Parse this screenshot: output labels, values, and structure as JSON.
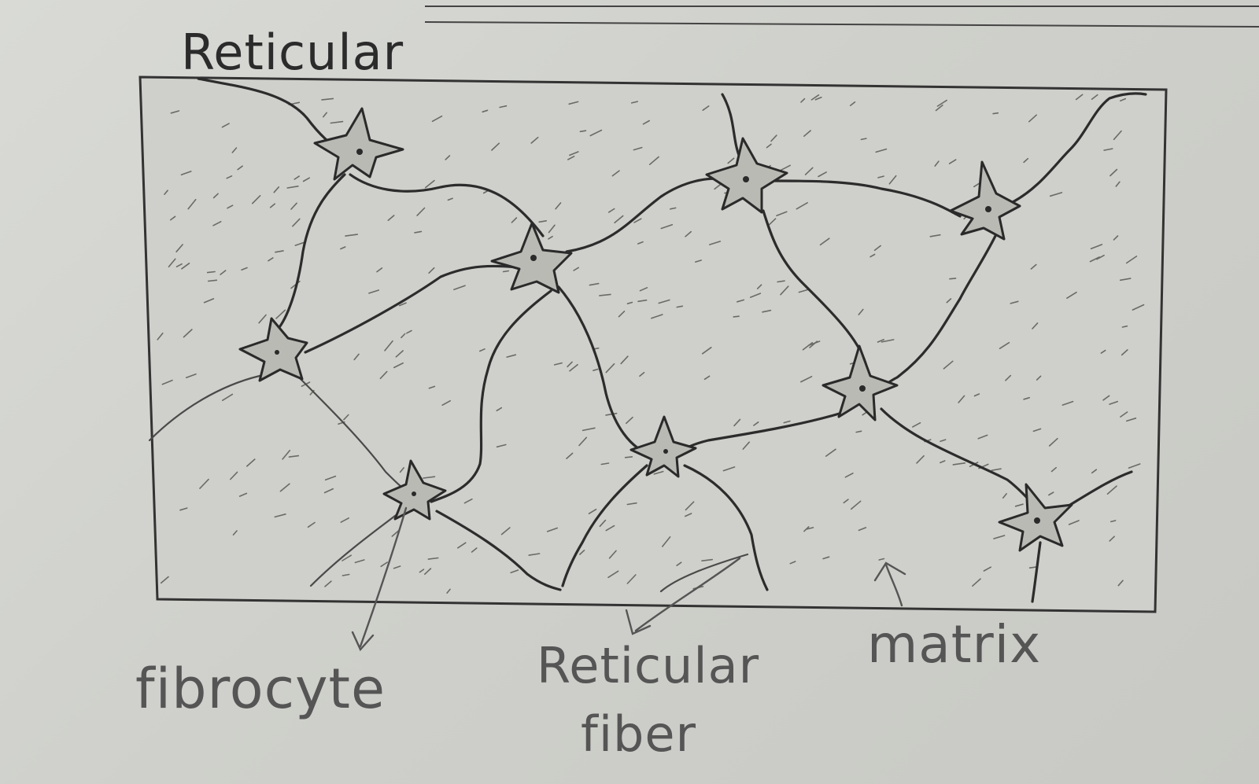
{
  "diagram": {
    "title": "Reticular",
    "labels": {
      "fibrocyte": "fibrocyte",
      "reticular_fiber_line1": "Reticular",
      "reticular_fiber_line2": "fiber",
      "matrix": "matrix"
    }
  }
}
